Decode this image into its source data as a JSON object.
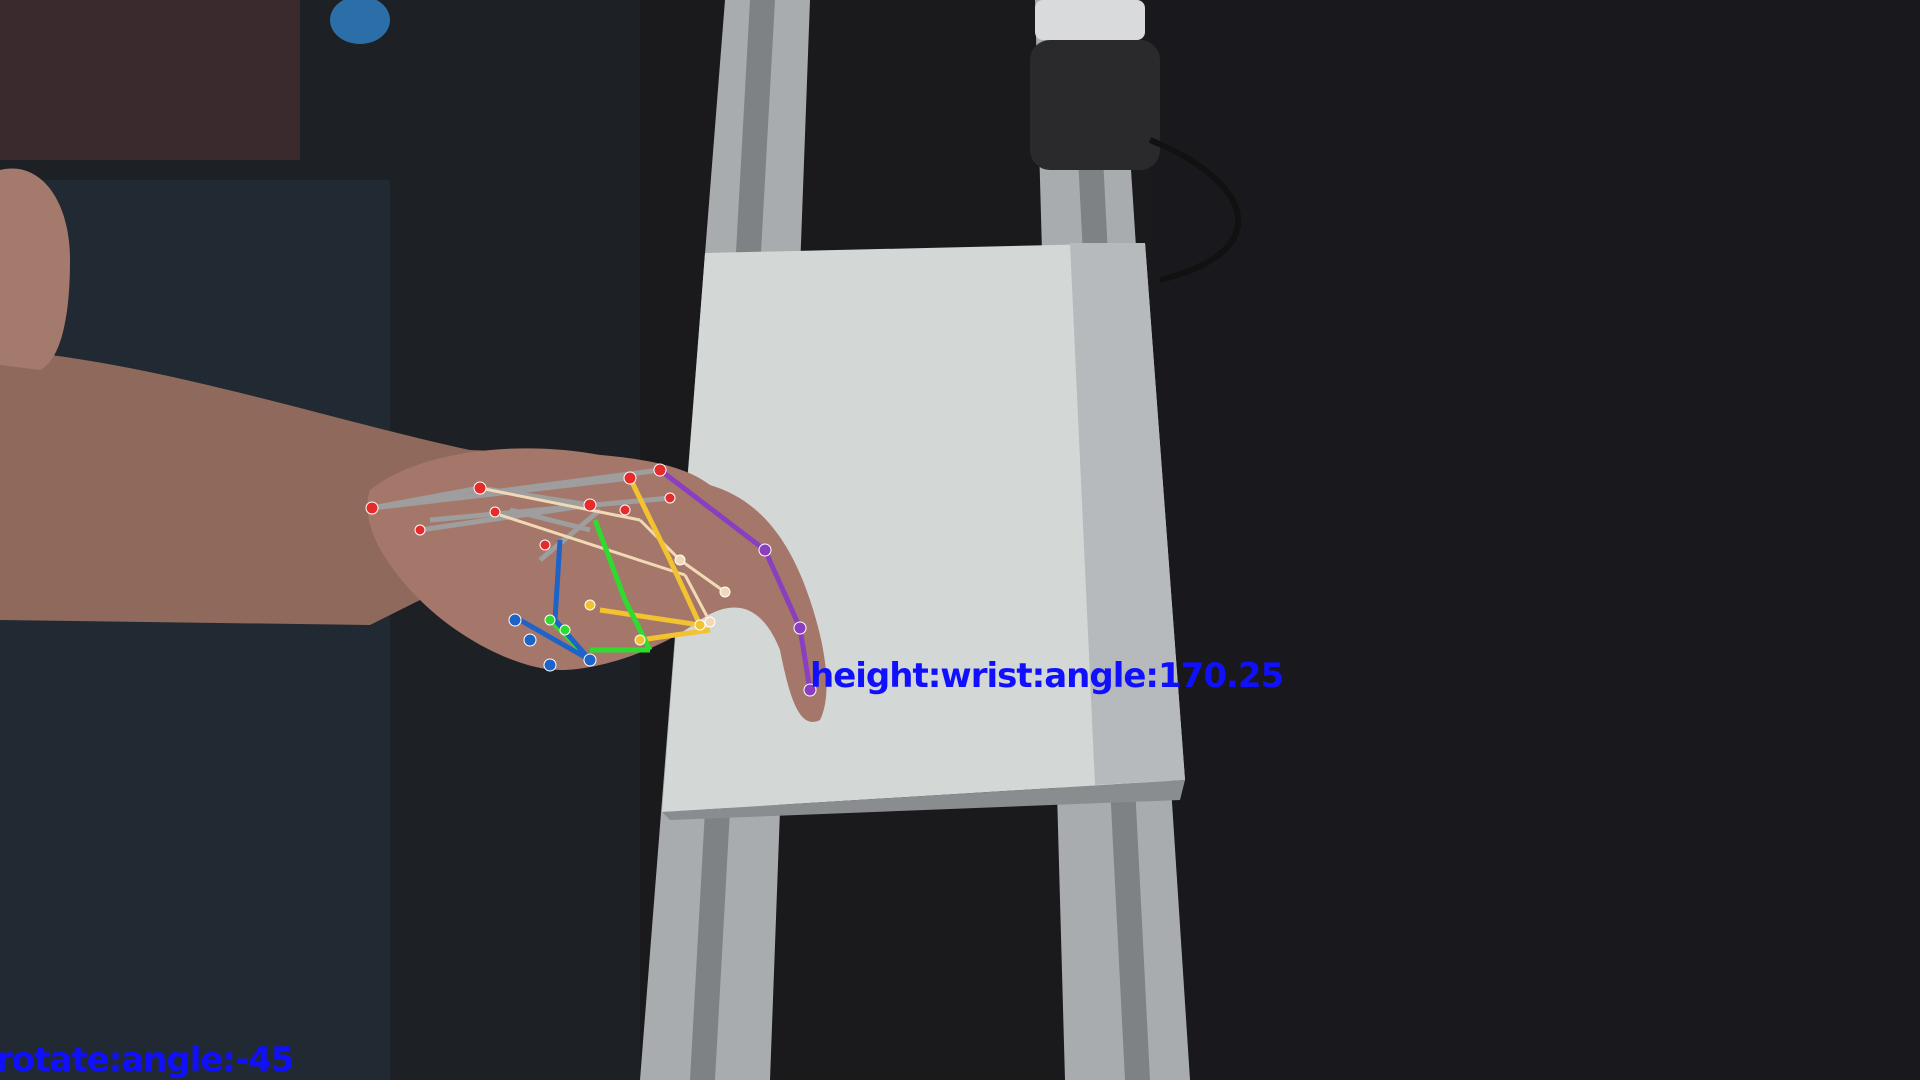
{
  "overlay": {
    "trajectory_label": "height:wrist:angle:170.25",
    "status_label": "rotate:angle:-45"
  },
  "colors": {
    "background": "#1a1a1d",
    "trackpad": "#d3d7d6",
    "rail": "#a9acae",
    "skin": "#a5776a",
    "overlay_text": "#1010ff",
    "keypoint": "#e52b2b",
    "palm_links": "#9e9e9e",
    "thumb_links": "#8a3fc0",
    "index_links": "#f2c230",
    "middle_links": "#2fdb2f",
    "ring_links": "#1e63c8",
    "pinky_links": "#f2d9b5"
  }
}
